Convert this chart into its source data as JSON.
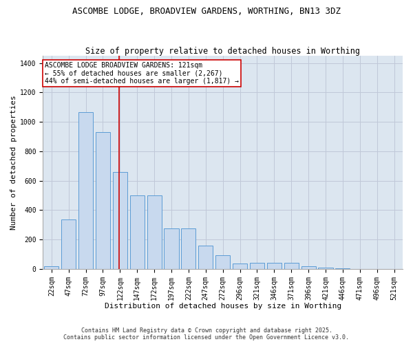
{
  "title": "ASCOMBE LODGE, BROADVIEW GARDENS, WORTHING, BN13 3DZ",
  "subtitle": "Size of property relative to detached houses in Worthing",
  "xlabel": "Distribution of detached houses by size in Worthing",
  "ylabel": "Number of detached properties",
  "categories": [
    "22sqm",
    "47sqm",
    "72sqm",
    "97sqm",
    "122sqm",
    "147sqm",
    "172sqm",
    "197sqm",
    "222sqm",
    "247sqm",
    "272sqm",
    "296sqm",
    "321sqm",
    "346sqm",
    "371sqm",
    "396sqm",
    "421sqm",
    "446sqm",
    "471sqm",
    "496sqm",
    "521sqm"
  ],
  "values": [
    20,
    335,
    1065,
    930,
    660,
    500,
    500,
    275,
    275,
    160,
    95,
    35,
    40,
    40,
    40,
    18,
    8,
    4,
    0,
    0,
    0
  ],
  "bar_color": "#c8d9ee",
  "bar_edge_color": "#5b9bd5",
  "red_line_index": 4,
  "annotation_text": "ASCOMBE LODGE BROADVIEW GARDENS: 121sqm\n← 55% of detached houses are smaller (2,267)\n44% of semi-detached houses are larger (1,817) →",
  "annotation_box_color": "#ffffff",
  "annotation_box_edge_color": "#cc0000",
  "red_line_color": "#cc0000",
  "grid_color": "#c0c8d8",
  "bg_color": "#dce6f0",
  "ylim": [
    0,
    1450
  ],
  "yticks": [
    0,
    200,
    400,
    600,
    800,
    1000,
    1200,
    1400
  ],
  "footer_text": "Contains HM Land Registry data © Crown copyright and database right 2025.\nContains public sector information licensed under the Open Government Licence v3.0.",
  "title_fontsize": 9,
  "subtitle_fontsize": 8.5,
  "xlabel_fontsize": 8,
  "ylabel_fontsize": 8,
  "tick_fontsize": 7,
  "annotation_fontsize": 7
}
